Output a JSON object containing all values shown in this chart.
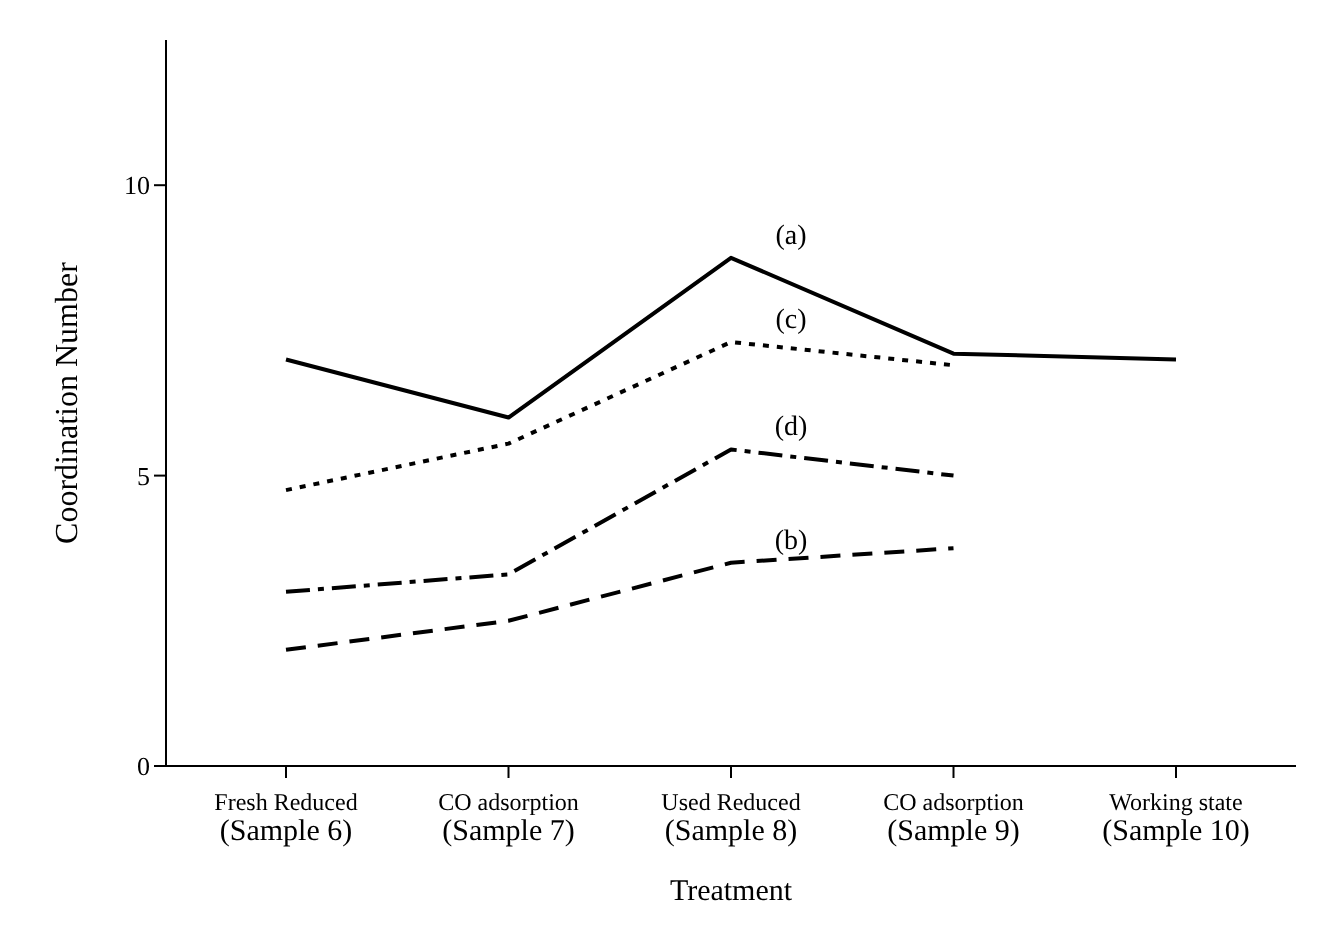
{
  "chart_data": {
    "type": "line",
    "xlabel": "Treatment",
    "ylabel": "Coordination Number",
    "categories": [
      "Fresh Reduced\n(Sample 6)",
      "CO adsorption\n(Sample 7)",
      "Used Reduced\n(Sample 8)",
      "CO adsorption\n(Sample 9)",
      "Working state\n(Sample 10)"
    ],
    "series": [
      {
        "name": "(a)",
        "color": "#000000",
        "line_style": "solid",
        "values": [
          7.0,
          6.0,
          8.75,
          7.1,
          7.0
        ]
      },
      {
        "name": "(c)",
        "color": "#000000",
        "line_style": "dotted",
        "values": [
          4.75,
          5.55,
          7.3,
          6.9,
          null
        ]
      },
      {
        "name": "(d)",
        "color": "#000000",
        "line_style": "dashdot",
        "values": [
          3.0,
          3.3,
          5.45,
          5.0,
          null
        ]
      },
      {
        "name": "(b)",
        "color": "#000000",
        "line_style": "dashed",
        "values": [
          2.0,
          2.5,
          3.5,
          3.75,
          null
        ]
      }
    ],
    "ylim": [
      0,
      12.5
    ],
    "yticks": [
      0,
      5,
      10
    ],
    "grid": false,
    "legend": false,
    "marker": "none"
  }
}
